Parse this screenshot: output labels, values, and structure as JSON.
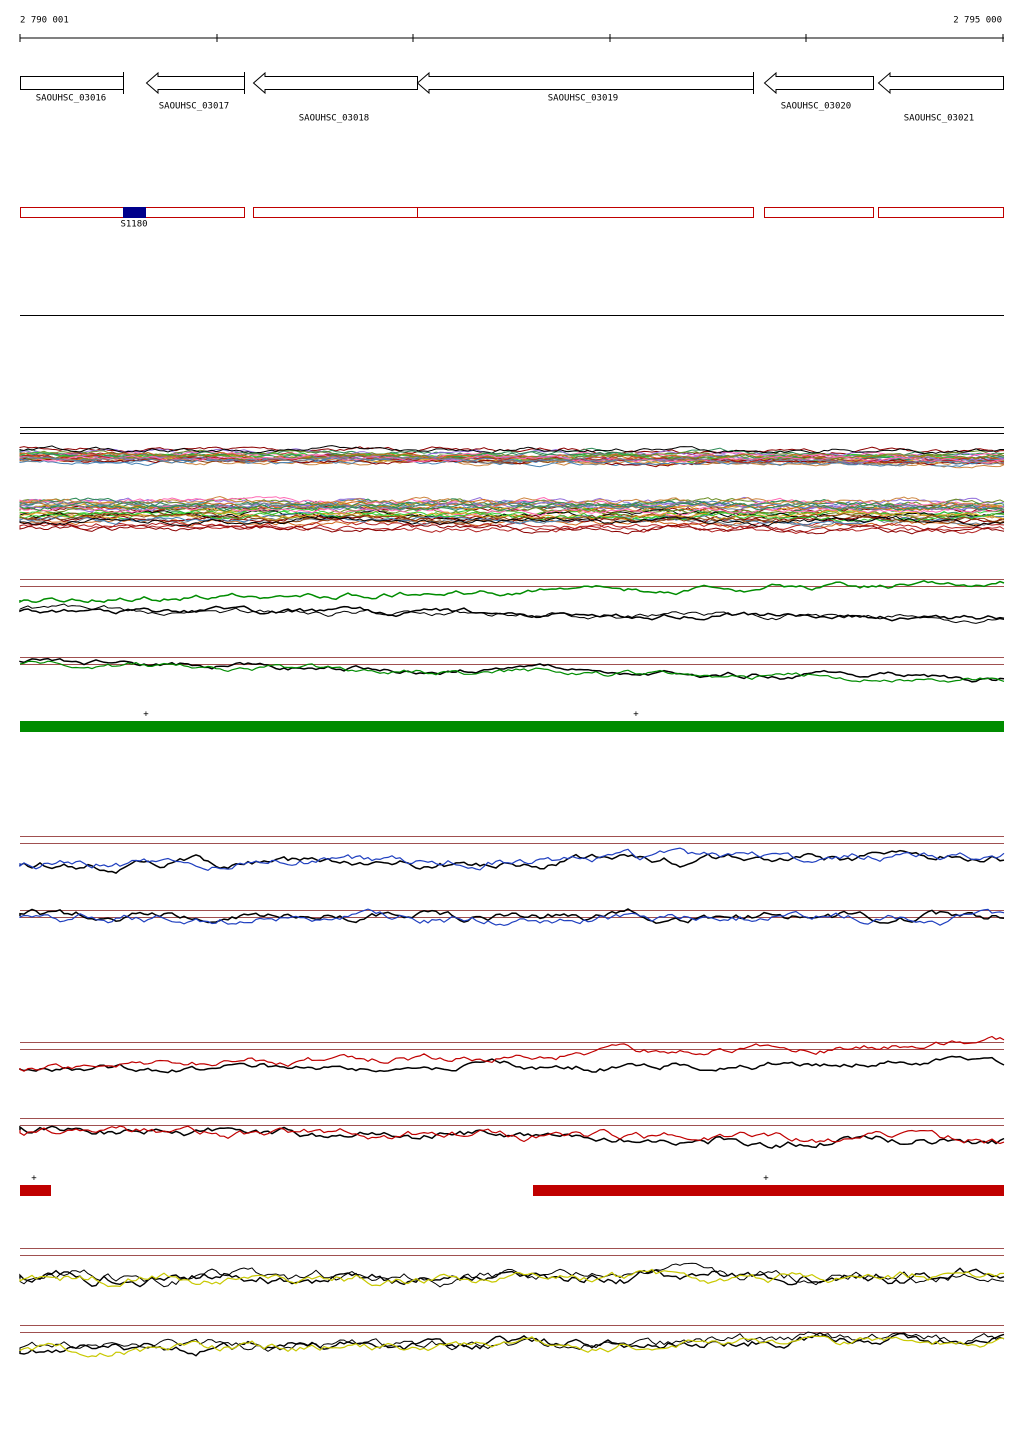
{
  "ruler": {
    "start": "2 790 001",
    "end": "2 795 000"
  },
  "genes": [
    {
      "label": "SAOUHSC_03016"
    },
    {
      "label": "SAOUHSC_03017"
    },
    {
      "label": "SAOUHSC_03018"
    },
    {
      "label": "SAOUHSC_03019"
    },
    {
      "label": "SAOUHSC_03020"
    },
    {
      "label": "SAOUHSC_03021"
    }
  ],
  "feature": {
    "label": "S1180"
  },
  "strand_marks": [
    "+",
    "+",
    "+",
    "+"
  ]
}
